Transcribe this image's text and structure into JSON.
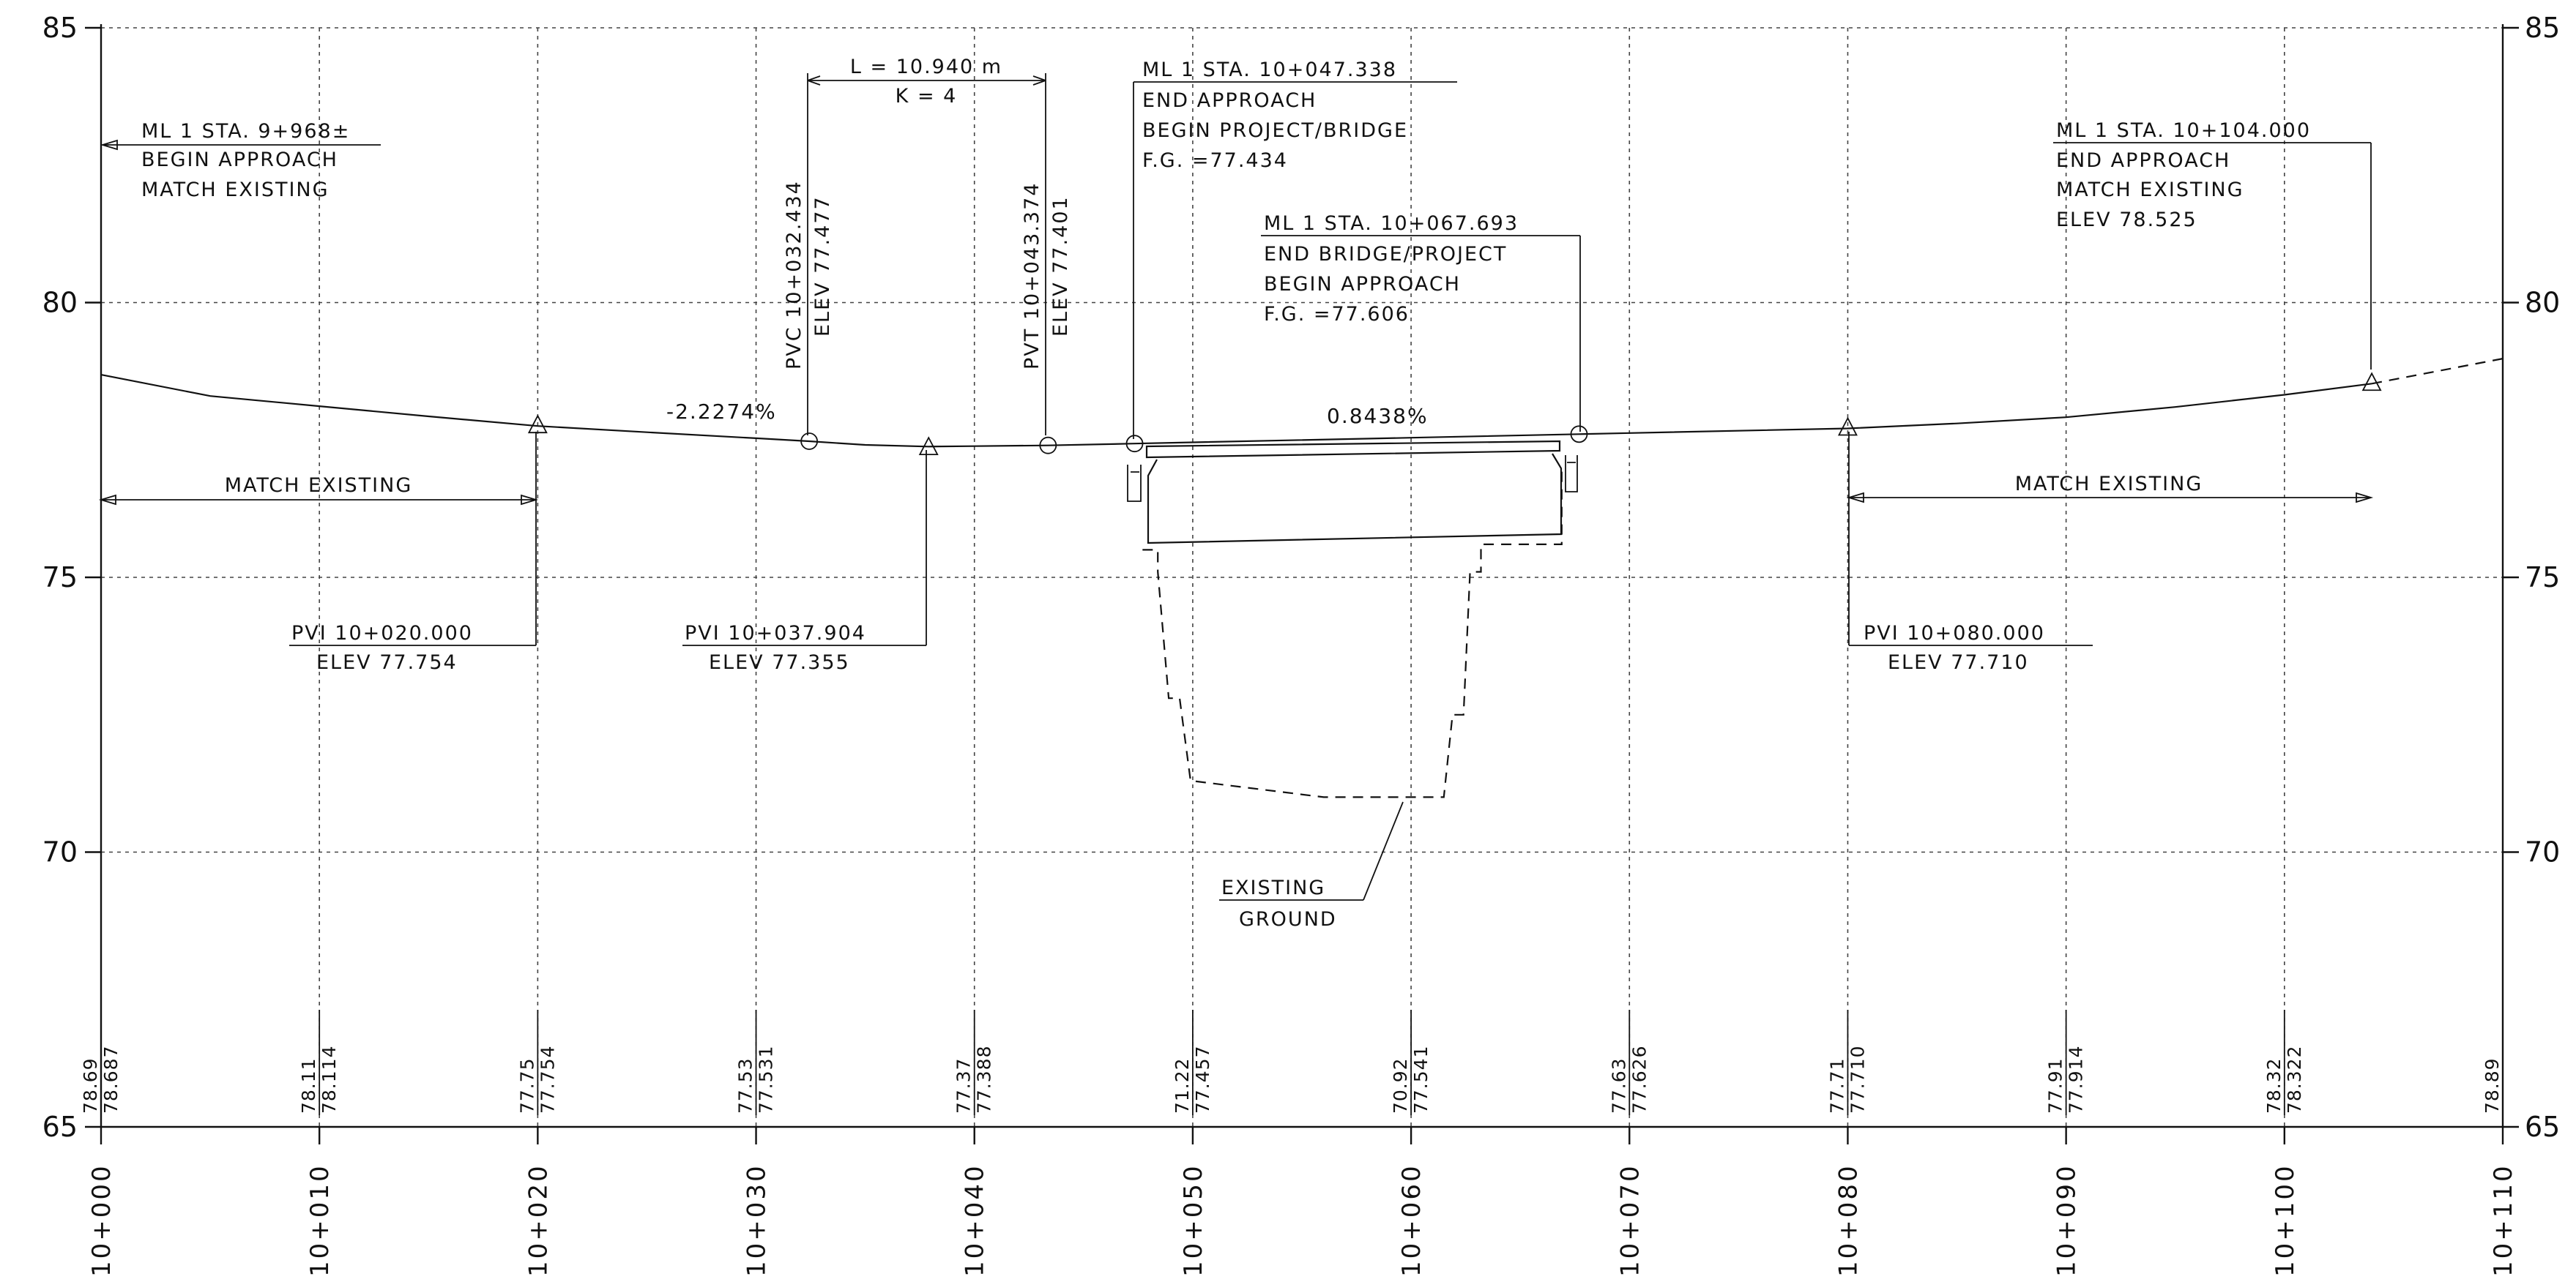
{
  "y_axis": {
    "ticks": [
      {
        "value": 85,
        "label": "85"
      },
      {
        "value": 80,
        "label": "80"
      },
      {
        "value": 75,
        "label": "75"
      },
      {
        "value": 70,
        "label": "70"
      },
      {
        "value": 65,
        "label": "65"
      }
    ],
    "min": 65,
    "max": 85
  },
  "x_axis": {
    "min": 0,
    "max": 110,
    "ticks": [
      {
        "value": 0,
        "label": "10+000"
      },
      {
        "value": 10,
        "label": "10+010"
      },
      {
        "value": 20,
        "label": "10+020"
      },
      {
        "value": 30,
        "label": "10+030"
      },
      {
        "value": 40,
        "label": "10+040"
      },
      {
        "value": 50,
        "label": "10+050"
      },
      {
        "value": 60,
        "label": "10+060"
      },
      {
        "value": 70,
        "label": "10+070"
      },
      {
        "value": 80,
        "label": "10+080"
      },
      {
        "value": 90,
        "label": "10+090"
      },
      {
        "value": 100,
        "label": "10+100"
      },
      {
        "value": 110,
        "label": "10+110"
      }
    ]
  },
  "elevation_labels": [
    {
      "station": 0,
      "existing": "78.69",
      "proposed": "78.687"
    },
    {
      "station": 10,
      "existing": "78.11",
      "proposed": "78.114"
    },
    {
      "station": 20,
      "existing": "77.75",
      "proposed": "77.754"
    },
    {
      "station": 30,
      "existing": "77.53",
      "proposed": "77.531"
    },
    {
      "station": 40,
      "existing": "77.37",
      "proposed": "77.388"
    },
    {
      "station": 50,
      "existing": "71.22",
      "proposed": "77.457"
    },
    {
      "station": 60,
      "existing": "70.92",
      "proposed": "77.541"
    },
    {
      "station": 70,
      "existing": "77.63",
      "proposed": "77.626"
    },
    {
      "station": 80,
      "existing": "77.71",
      "proposed": "77.710"
    },
    {
      "station": 90,
      "existing": "77.91",
      "proposed": "77.914"
    },
    {
      "station": 100,
      "existing": "78.32",
      "proposed": "78.322"
    },
    {
      "station": 110,
      "existing": "78.89",
      "proposed": ""
    }
  ],
  "finished_grade": [
    [
      0,
      78.687
    ],
    [
      5,
      78.3
    ],
    [
      10,
      78.114
    ],
    [
      15,
      77.93
    ],
    [
      20,
      77.754
    ],
    [
      25,
      77.64
    ],
    [
      30,
      77.531
    ],
    [
      32.434,
      77.477
    ],
    [
      35,
      77.41
    ],
    [
      37.904,
      77.38
    ],
    [
      40,
      77.388
    ],
    [
      43.374,
      77.401
    ],
    [
      47.338,
      77.434
    ],
    [
      50,
      77.457
    ],
    [
      60,
      77.541
    ],
    [
      67.693,
      77.606
    ],
    [
      70,
      77.626
    ],
    [
      80,
      77.71
    ],
    [
      85,
      77.8
    ],
    [
      90,
      77.914
    ],
    [
      95,
      78.1
    ],
    [
      100,
      78.322
    ],
    [
      104,
      78.525
    ]
  ],
  "grade_extension": [
    [
      104,
      78.525
    ],
    [
      110,
      78.98
    ]
  ],
  "existing_ground": [
    [
      47.7,
      75.5
    ],
    [
      48.4,
      75.5
    ],
    [
      48.4,
      75.1
    ],
    [
      48.9,
      72.8
    ],
    [
      49.4,
      72.8
    ],
    [
      49.9,
      71.3
    ],
    [
      56,
      71.0
    ],
    [
      61.5,
      71.0
    ],
    [
      61.9,
      72.5
    ],
    [
      62.4,
      72.5
    ],
    [
      62.7,
      75.1
    ],
    [
      63.2,
      75.1
    ],
    [
      63.2,
      75.6
    ],
    [
      66.9,
      75.6
    ],
    [
      66.9,
      77.0
    ]
  ],
  "pvi_points": [
    {
      "station": 20,
      "elev": 77.754,
      "label": "PVI 10+020.000",
      "elev_label": "ELEV 77.754"
    },
    {
      "station": 37.904,
      "elev": 77.355,
      "label": "PVI 10+037.904",
      "elev_label": "ELEV 77.355"
    },
    {
      "station": 80,
      "elev": 77.71,
      "label": "PVI 10+080.000",
      "elev_label": "ELEV 77.710"
    },
    {
      "station": 104,
      "elev": 78.525,
      "label": "",
      "elev_label": ""
    }
  ],
  "curve_points": [
    {
      "station": 32.434,
      "elev": 77.477,
      "label": "PVC 10+032.434",
      "elev_label": "ELEV 77.477"
    },
    {
      "station": 43.374,
      "elev": 77.401,
      "label": "PVT 10+043.374",
      "elev_label": "ELEV 77.401"
    },
    {
      "station": 47.338,
      "elev": 77.434,
      "label": "",
      "elev_label": ""
    },
    {
      "station": 67.693,
      "elev": 77.606,
      "label": "",
      "elev_label": ""
    }
  ],
  "vertical_curve": {
    "length_label": "L = 10.940 m",
    "k_label": "K = 4"
  },
  "grades": [
    {
      "label": "-2.2274%",
      "station": 28,
      "elev": 77.95
    },
    {
      "label": "0.8438%",
      "station": 57.5,
      "elev": 77.9
    }
  ],
  "notes": {
    "begin_approach": [
      "ML 1 STA. 9+968±",
      "BEGIN APPROACH",
      "MATCH EXISTING"
    ],
    "begin_bridge": [
      "ML 1 STA. 10+047.338",
      "END APPROACH",
      "BEGIN PROJECT/BRIDGE",
      "F.G. =77.434"
    ],
    "end_bridge": [
      "ML 1 STA. 10+067.693",
      "END BRIDGE/PROJECT",
      "BEGIN APPROACH",
      "F.G. =77.606"
    ],
    "end_approach": [
      "ML 1 STA. 10+104.000",
      "END APPROACH",
      "MATCH EXISTING",
      "ELEV 78.525"
    ]
  },
  "match_existing_left": {
    "label": "MATCH EXISTING",
    "from": 0,
    "to": 20
  },
  "match_existing_right": {
    "label": "MATCH EXISTING",
    "from": 80,
    "to": 104
  },
  "existing_ground_label": [
    "EXISTING",
    "GROUND"
  ]
}
